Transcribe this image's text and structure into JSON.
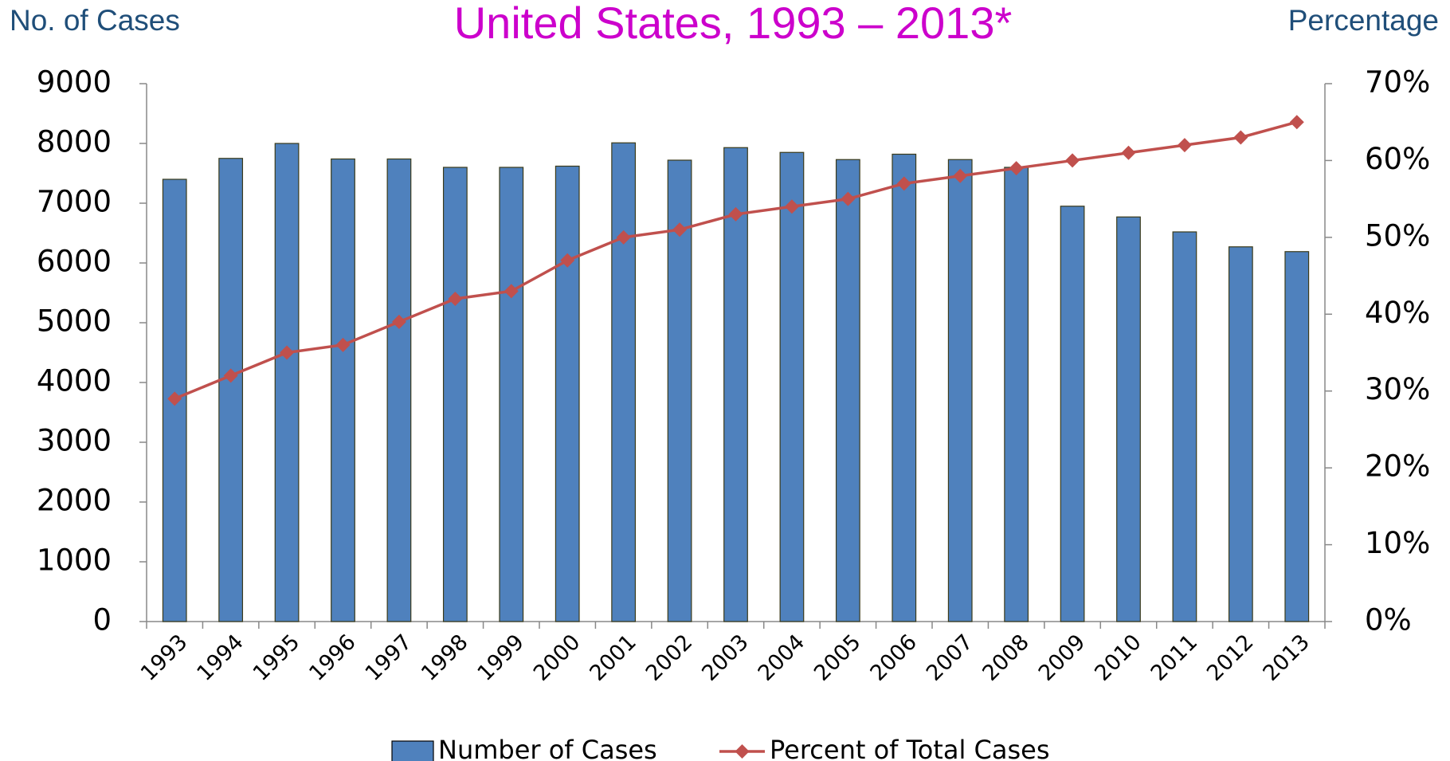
{
  "chart_data": {
    "type": "bar-line",
    "title": "United States, 1993 – 2013*",
    "y_label": "No. of Cases",
    "y2_label": "Percentage",
    "categories": [
      "1993",
      "1994",
      "1995",
      "1996",
      "1997",
      "1998",
      "1999",
      "2000",
      "2001",
      "2002",
      "2003",
      "2004",
      "2005",
      "2006",
      "2007",
      "2008",
      "2009",
      "2010",
      "2011",
      "2012",
      "2013"
    ],
    "series": [
      {
        "name": "Number of Cases",
        "color": "#4f81bd",
        "values": [
          7400,
          7750,
          8000,
          7740,
          7740,
          7600,
          7600,
          7620,
          8010,
          7720,
          7930,
          7850,
          7730,
          7820,
          7730,
          7600,
          6950,
          6770,
          6520,
          6270,
          6190
        ]
      },
      {
        "name": "Percent of Total Cases",
        "color": "#c0504d",
        "axis": "y2",
        "values": [
          29,
          32,
          35,
          36,
          39,
          42,
          43,
          47,
          50,
          51,
          53,
          54,
          55,
          57,
          58,
          59,
          60,
          61,
          62,
          63,
          65
        ]
      }
    ],
    "ylim": [
      0,
      9000
    ],
    "yticks": [
      0,
      1000,
      2000,
      3000,
      4000,
      5000,
      6000,
      7000,
      8000,
      9000
    ],
    "y2lim": [
      0,
      70
    ],
    "y2ticks": [
      {
        "value": 0,
        "label": "0%"
      },
      {
        "value": 10,
        "label": "10%"
      },
      {
        "value": 20,
        "label": "20%"
      },
      {
        "value": 30,
        "label": "30%"
      },
      {
        "value": 40,
        "label": "40%"
      },
      {
        "value": 50,
        "label": "50%"
      },
      {
        "value": 60,
        "label": "60%"
      },
      {
        "value": 70,
        "label": "70%"
      }
    ],
    "grid": false,
    "legend": "bottom"
  }
}
